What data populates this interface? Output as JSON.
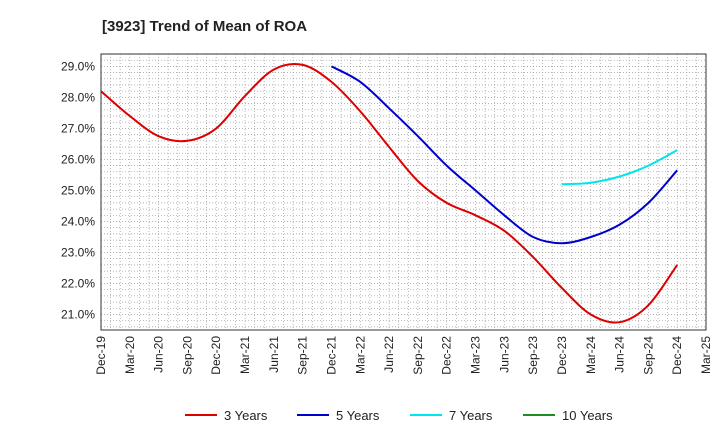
{
  "chart_data": {
    "type": "line",
    "title": "[3923]  Trend of Mean of ROA",
    "xlabel": "",
    "ylabel": "",
    "categories": [
      "Dec-19",
      "Mar-20",
      "Jun-20",
      "Sep-20",
      "Dec-20",
      "Mar-21",
      "Jun-21",
      "Sep-21",
      "Dec-21",
      "Mar-22",
      "Jun-22",
      "Sep-22",
      "Dec-22",
      "Mar-23",
      "Jun-23",
      "Sep-23",
      "Dec-23",
      "Mar-24",
      "Jun-24",
      "Sep-24",
      "Dec-24",
      "Mar-25"
    ],
    "ylim": [
      20.5,
      29.4
    ],
    "y_ticks": [
      21.0,
      22.0,
      23.0,
      24.0,
      25.0,
      26.0,
      27.0,
      28.0,
      29.0
    ],
    "y_tick_labels": [
      "21.0%",
      "22.0%",
      "23.0%",
      "24.0%",
      "25.0%",
      "26.0%",
      "27.0%",
      "28.0%",
      "29.0%"
    ],
    "grid": true,
    "legend_position": "bottom",
    "series": [
      {
        "name": "3 Years",
        "color": "#dd0000",
        "values": [
          28.2,
          27.4,
          26.75,
          26.6,
          27.0,
          28.05,
          28.9,
          29.05,
          28.5,
          27.55,
          26.4,
          25.3,
          24.6,
          24.2,
          23.7,
          22.85,
          21.85,
          21.0,
          20.75,
          21.3,
          22.6,
          null
        ]
      },
      {
        "name": "5 Years",
        "color": "#0000cc",
        "values": [
          null,
          null,
          null,
          null,
          null,
          null,
          null,
          null,
          29.0,
          28.5,
          27.65,
          26.75,
          25.8,
          25.0,
          24.2,
          23.5,
          23.3,
          23.5,
          23.9,
          24.6,
          25.65,
          null
        ]
      },
      {
        "name": "7 Years",
        "color": "#00e5ee",
        "values": [
          null,
          null,
          null,
          null,
          null,
          null,
          null,
          null,
          null,
          null,
          null,
          null,
          null,
          null,
          null,
          null,
          25.2,
          25.25,
          25.45,
          25.8,
          26.3,
          null
        ]
      },
      {
        "name": "10 Years",
        "color": "#228b22",
        "values": [
          null,
          null,
          null,
          null,
          null,
          null,
          null,
          null,
          null,
          null,
          null,
          null,
          null,
          null,
          null,
          null,
          null,
          null,
          null,
          null,
          null,
          null
        ]
      }
    ]
  }
}
